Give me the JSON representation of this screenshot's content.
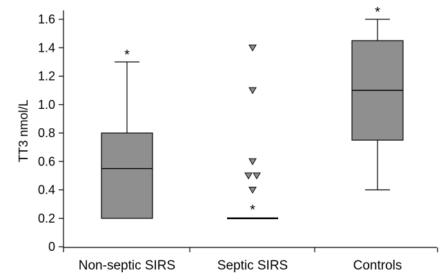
{
  "chart_data": {
    "type": "box",
    "ylabel": "TT3 nmol/L",
    "categories": [
      "Non-septic SIRS",
      "Septic SIRS",
      "Controls"
    ],
    "ylim": [
      0,
      1.6
    ],
    "yticks": [
      0,
      0.2,
      0.4,
      0.6,
      0.8,
      1.0,
      1.2,
      1.4,
      1.6
    ],
    "ytick_labels": [
      "0",
      "0.2",
      "0.4",
      "0.6",
      "0.8",
      "1.0",
      "1.2",
      "1.4",
      "1.6"
    ],
    "grid": false,
    "colors": {
      "box_fill": "#8f8f8f",
      "box_stroke": "#000000",
      "outlier_fill": "#8f8f8f",
      "axis": "#000000"
    },
    "series": [
      {
        "category": "Non-septic SIRS",
        "q1": 0.2,
        "median": 0.55,
        "q3": 0.8,
        "whisker_low": 0.2,
        "whisker_high": 1.3,
        "outliers": [],
        "annotation": "*"
      },
      {
        "category": "Septic SIRS",
        "q1": 0.2,
        "median": 0.2,
        "q3": 0.2,
        "whisker_low": 0.2,
        "whisker_high": 0.2,
        "outliers": [
          1.4,
          1.1,
          0.6,
          0.5,
          0.5,
          0.4
        ],
        "annotation": "*"
      },
      {
        "category": "Controls",
        "q1": 0.75,
        "median": 1.1,
        "q3": 1.45,
        "whisker_low": 0.4,
        "whisker_high": 1.6,
        "outliers": [],
        "annotation": "*"
      }
    ]
  }
}
